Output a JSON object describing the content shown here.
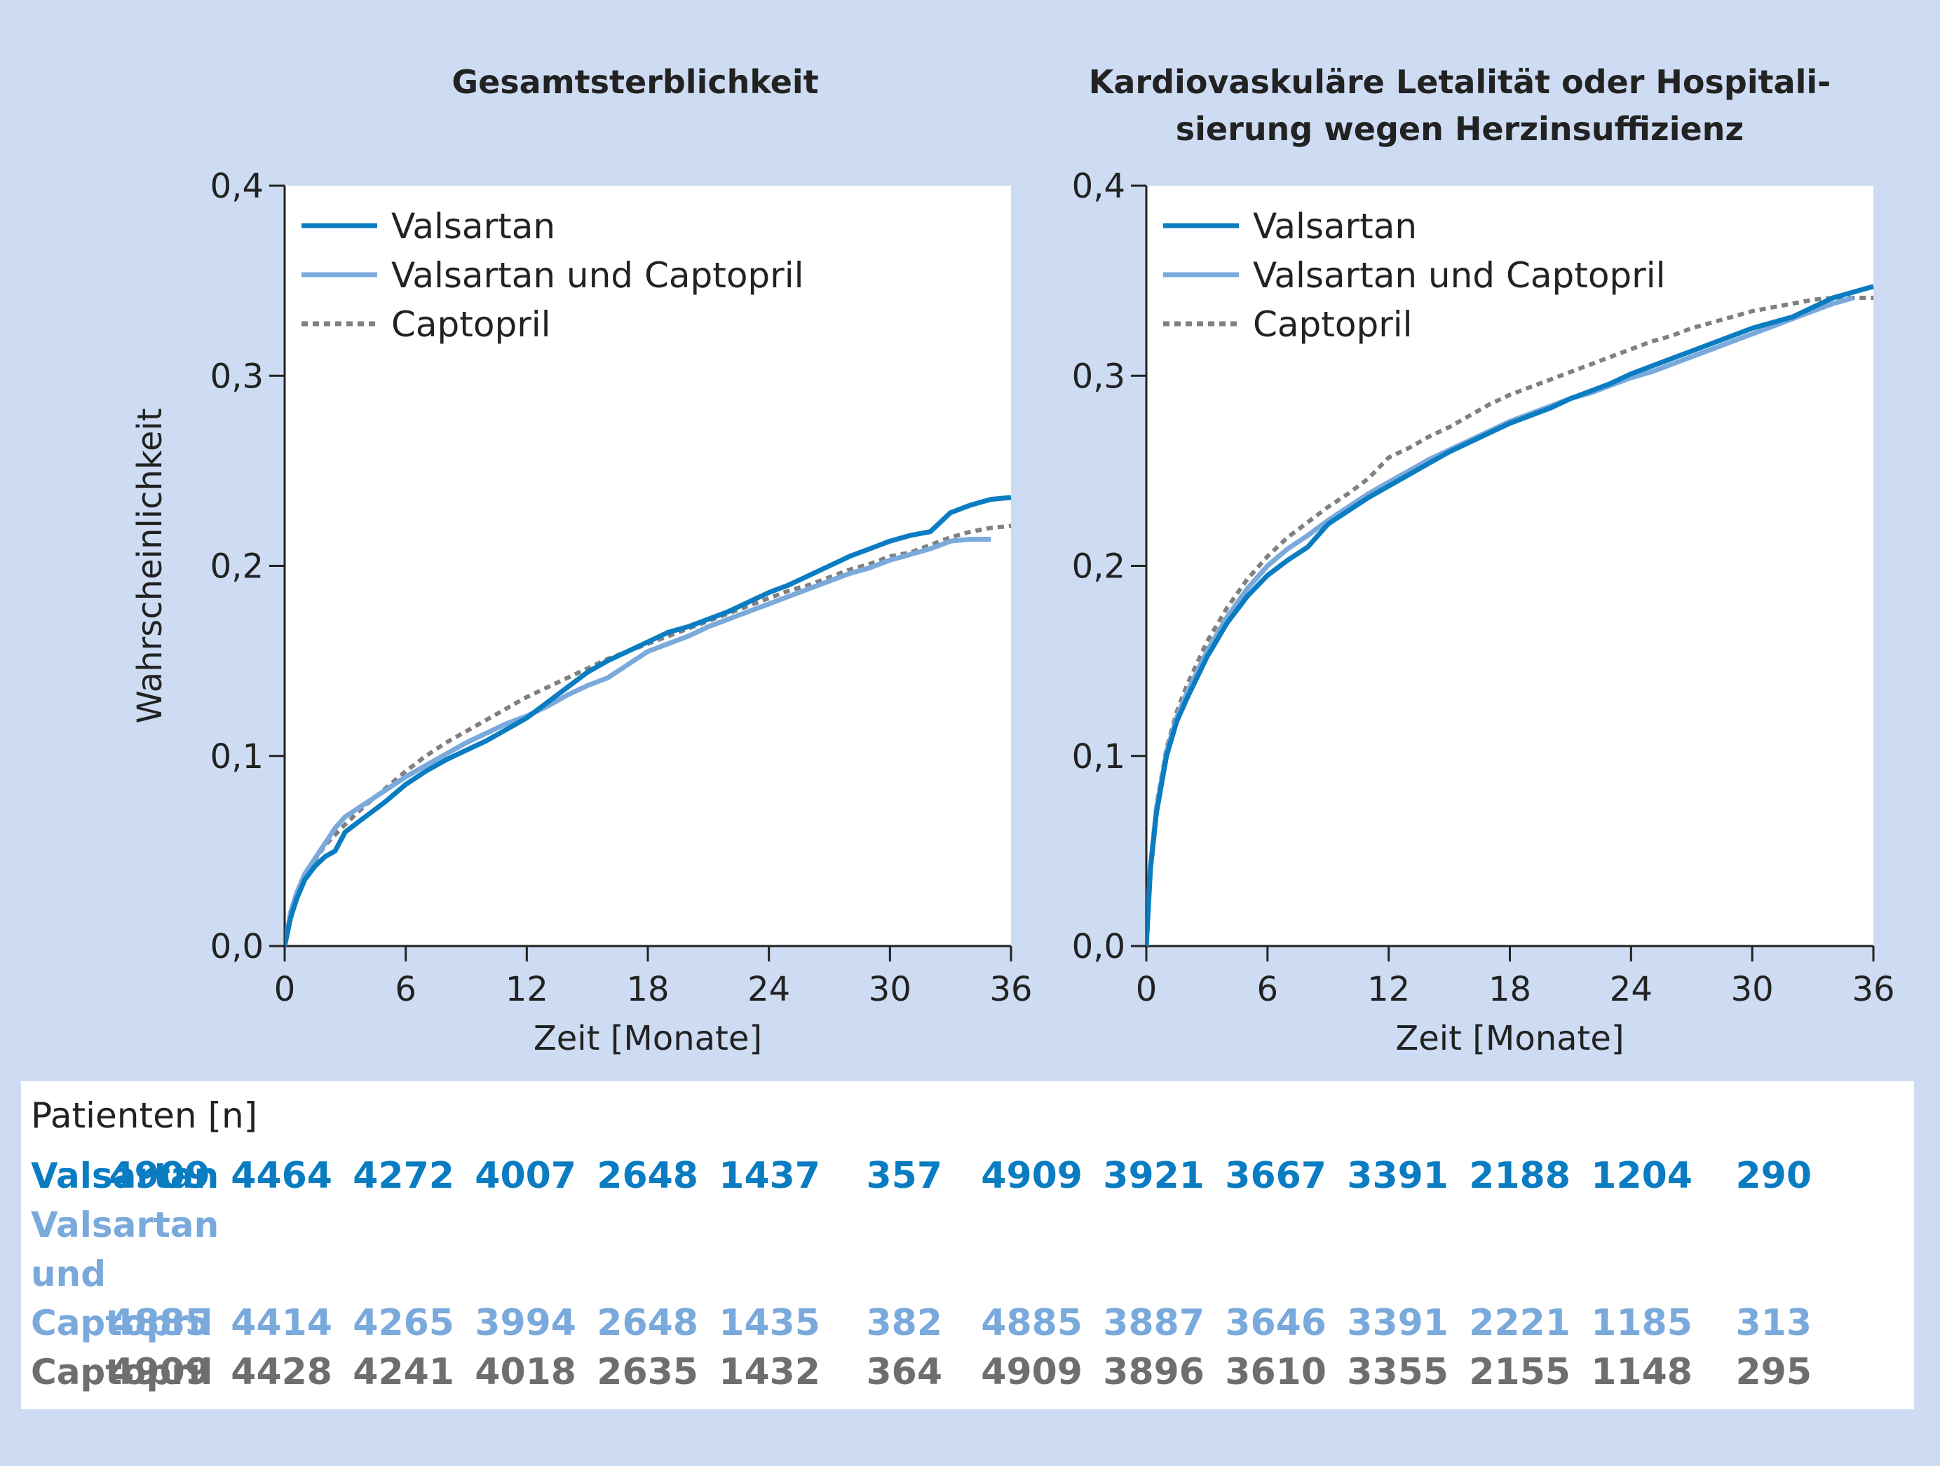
{
  "colors": {
    "background": "#cddcf2",
    "valsartan": "#0a7cc1",
    "valsartan_captopril": "#7aa9dc",
    "captopril": "#808080"
  },
  "chart_data": [
    {
      "type": "line",
      "title": "Gesamtsterblichkeit",
      "xlabel": "Zeit [Monate]",
      "ylabel": "Wahrscheinlichkeit",
      "xlim": [
        0,
        36
      ],
      "ylim": [
        0,
        0.4
      ],
      "xticks": [
        "0",
        "6",
        "12",
        "18",
        "24",
        "30",
        "36"
      ],
      "yticks": [
        "0,0",
        "0,1",
        "0,2",
        "0,3",
        "0,4"
      ],
      "grid": false,
      "legend": "top-left",
      "series": [
        {
          "name": "Valsartan",
          "color": "#0a7cc1",
          "style": "solid",
          "points": [
            [
              0,
              0
            ],
            [
              0.3,
              0.015
            ],
            [
              0.6,
              0.025
            ],
            [
              1,
              0.035
            ],
            [
              1.5,
              0.042
            ],
            [
              2,
              0.047
            ],
            [
              2.5,
              0.05
            ],
            [
              3,
              0.06
            ],
            [
              4,
              0.068
            ],
            [
              5,
              0.076
            ],
            [
              6,
              0.085
            ],
            [
              7,
              0.092
            ],
            [
              8,
              0.098
            ],
            [
              9,
              0.103
            ],
            [
              10,
              0.108
            ],
            [
              11,
              0.114
            ],
            [
              12,
              0.12
            ],
            [
              13,
              0.128
            ],
            [
              14,
              0.136
            ],
            [
              15,
              0.144
            ],
            [
              16,
              0.15
            ],
            [
              17,
              0.155
            ],
            [
              18,
              0.16
            ],
            [
              19,
              0.165
            ],
            [
              20,
              0.168
            ],
            [
              21,
              0.172
            ],
            [
              22,
              0.176
            ],
            [
              23,
              0.181
            ],
            [
              24,
              0.186
            ],
            [
              25,
              0.19
            ],
            [
              26,
              0.195
            ],
            [
              27,
              0.2
            ],
            [
              28,
              0.205
            ],
            [
              29,
              0.209
            ],
            [
              30,
              0.213
            ],
            [
              31,
              0.216
            ],
            [
              32,
              0.218
            ],
            [
              33,
              0.228
            ],
            [
              34,
              0.232
            ],
            [
              35,
              0.235
            ],
            [
              36,
              0.236
            ]
          ]
        },
        {
          "name": "Valsartan und Captopril",
          "color": "#7aa9dc",
          "style": "solid",
          "points": [
            [
              0,
              0
            ],
            [
              0.3,
              0.018
            ],
            [
              0.6,
              0.028
            ],
            [
              1,
              0.038
            ],
            [
              1.5,
              0.046
            ],
            [
              2,
              0.054
            ],
            [
              2.5,
              0.062
            ],
            [
              3,
              0.068
            ],
            [
              4,
              0.075
            ],
            [
              5,
              0.082
            ],
            [
              6,
              0.089
            ],
            [
              7,
              0.095
            ],
            [
              8,
              0.101
            ],
            [
              9,
              0.107
            ],
            [
              10,
              0.112
            ],
            [
              11,
              0.117
            ],
            [
              12,
              0.121
            ],
            [
              13,
              0.126
            ],
            [
              14,
              0.132
            ],
            [
              15,
              0.137
            ],
            [
              16,
              0.141
            ],
            [
              17,
              0.148
            ],
            [
              18,
              0.155
            ],
            [
              19,
              0.159
            ],
            [
              20,
              0.163
            ],
            [
              21,
              0.168
            ],
            [
              22,
              0.172
            ],
            [
              23,
              0.176
            ],
            [
              24,
              0.18
            ],
            [
              25,
              0.184
            ],
            [
              26,
              0.188
            ],
            [
              27,
              0.192
            ],
            [
              28,
              0.196
            ],
            [
              29,
              0.199
            ],
            [
              30,
              0.203
            ],
            [
              31,
              0.206
            ],
            [
              32,
              0.209
            ],
            [
              33,
              0.213
            ],
            [
              34,
              0.214
            ],
            [
              35,
              0.214
            ]
          ]
        },
        {
          "name": "Captopril",
          "color": "#808080",
          "style": "dotted",
          "points": [
            [
              0,
              0
            ],
            [
              0.3,
              0.017
            ],
            [
              0.6,
              0.027
            ],
            [
              1,
              0.037
            ],
            [
              1.5,
              0.045
            ],
            [
              2,
              0.053
            ],
            [
              3,
              0.064
            ],
            [
              4,
              0.074
            ],
            [
              5,
              0.083
            ],
            [
              6,
              0.092
            ],
            [
              7,
              0.1
            ],
            [
              8,
              0.107
            ],
            [
              9,
              0.113
            ],
            [
              10,
              0.119
            ],
            [
              11,
              0.125
            ],
            [
              12,
              0.131
            ],
            [
              13,
              0.136
            ],
            [
              14,
              0.141
            ],
            [
              15,
              0.146
            ],
            [
              16,
              0.151
            ],
            [
              17,
              0.155
            ],
            [
              18,
              0.159
            ],
            [
              19,
              0.163
            ],
            [
              20,
              0.167
            ],
            [
              21,
              0.171
            ],
            [
              22,
              0.175
            ],
            [
              23,
              0.179
            ],
            [
              24,
              0.183
            ],
            [
              25,
              0.187
            ],
            [
              26,
              0.19
            ],
            [
              27,
              0.194
            ],
            [
              28,
              0.198
            ],
            [
              29,
              0.201
            ],
            [
              30,
              0.205
            ],
            [
              31,
              0.207
            ],
            [
              32,
              0.211
            ],
            [
              33,
              0.215
            ],
            [
              34,
              0.218
            ],
            [
              35,
              0.22
            ],
            [
              36,
              0.221
            ]
          ]
        }
      ]
    },
    {
      "type": "line",
      "title": "Kardiovaskuläre Letalität oder Hospitali-\nsierung wegen Herzinsuffizienz",
      "xlabel": "Zeit [Monate]",
      "ylabel": "",
      "xlim": [
        0,
        36
      ],
      "ylim": [
        0,
        0.4
      ],
      "xticks": [
        "0",
        "6",
        "12",
        "18",
        "24",
        "30",
        "36"
      ],
      "yticks": [
        "0,0",
        "0,1",
        "0,2",
        "0,3",
        "0,4"
      ],
      "grid": false,
      "legend": "top-left",
      "series": [
        {
          "name": "Valsartan",
          "color": "#0a7cc1",
          "style": "solid",
          "points": [
            [
              0,
              0
            ],
            [
              0.2,
              0.04
            ],
            [
              0.5,
              0.07
            ],
            [
              1,
              0.1
            ],
            [
              1.5,
              0.118
            ],
            [
              2,
              0.13
            ],
            [
              3,
              0.152
            ],
            [
              4,
              0.17
            ],
            [
              5,
              0.184
            ],
            [
              6,
              0.195
            ],
            [
              7,
              0.203
            ],
            [
              8,
              0.21
            ],
            [
              9,
              0.222
            ],
            [
              10,
              0.229
            ],
            [
              11,
              0.236
            ],
            [
              12,
              0.242
            ],
            [
              13,
              0.248
            ],
            [
              14,
              0.254
            ],
            [
              15,
              0.26
            ],
            [
              16,
              0.265
            ],
            [
              17,
              0.27
            ],
            [
              18,
              0.275
            ],
            [
              19,
              0.279
            ],
            [
              20,
              0.283
            ],
            [
              21,
              0.288
            ],
            [
              22,
              0.292
            ],
            [
              23,
              0.296
            ],
            [
              24,
              0.301
            ],
            [
              25,
              0.305
            ],
            [
              26,
              0.309
            ],
            [
              27,
              0.313
            ],
            [
              28,
              0.317
            ],
            [
              29,
              0.321
            ],
            [
              30,
              0.325
            ],
            [
              31,
              0.328
            ],
            [
              32,
              0.331
            ],
            [
              33,
              0.336
            ],
            [
              34,
              0.341
            ],
            [
              35,
              0.344
            ],
            [
              36,
              0.347
            ]
          ]
        },
        {
          "name": "Valsartan und Captopril",
          "color": "#7aa9dc",
          "style": "solid",
          "points": [
            [
              0,
              0
            ],
            [
              0.2,
              0.042
            ],
            [
              0.5,
              0.072
            ],
            [
              1,
              0.102
            ],
            [
              1.5,
              0.12
            ],
            [
              2,
              0.133
            ],
            [
              3,
              0.155
            ],
            [
              4,
              0.173
            ],
            [
              5,
              0.188
            ],
            [
              6,
              0.2
            ],
            [
              7,
              0.209
            ],
            [
              8,
              0.216
            ],
            [
              9,
              0.224
            ],
            [
              10,
              0.231
            ],
            [
              11,
              0.238
            ],
            [
              12,
              0.244
            ],
            [
              13,
              0.25
            ],
            [
              14,
              0.256
            ],
            [
              15,
              0.261
            ],
            [
              16,
              0.266
            ],
            [
              17,
              0.271
            ],
            [
              18,
              0.276
            ],
            [
              19,
              0.28
            ],
            [
              20,
              0.284
            ],
            [
              21,
              0.288
            ],
            [
              22,
              0.291
            ],
            [
              23,
              0.295
            ],
            [
              24,
              0.299
            ],
            [
              25,
              0.302
            ],
            [
              26,
              0.306
            ],
            [
              27,
              0.31
            ],
            [
              28,
              0.314
            ],
            [
              29,
              0.318
            ],
            [
              30,
              0.322
            ],
            [
              31,
              0.326
            ],
            [
              32,
              0.33
            ],
            [
              33,
              0.334
            ],
            [
              34,
              0.338
            ],
            [
              35,
              0.341
            ]
          ]
        },
        {
          "name": "Captopril",
          "color": "#808080",
          "style": "dotted",
          "points": [
            [
              0,
              0
            ],
            [
              0.2,
              0.043
            ],
            [
              0.5,
              0.074
            ],
            [
              1,
              0.104
            ],
            [
              1.5,
              0.123
            ],
            [
              2,
              0.137
            ],
            [
              3,
              0.16
            ],
            [
              4,
              0.178
            ],
            [
              5,
              0.193
            ],
            [
              6,
              0.205
            ],
            [
              7,
              0.215
            ],
            [
              8,
              0.223
            ],
            [
              9,
              0.231
            ],
            [
              10,
              0.238
            ],
            [
              11,
              0.246
            ],
            [
              12,
              0.257
            ],
            [
              13,
              0.262
            ],
            [
              14,
              0.268
            ],
            [
              15,
              0.273
            ],
            [
              16,
              0.279
            ],
            [
              17,
              0.285
            ],
            [
              18,
              0.29
            ],
            [
              19,
              0.294
            ],
            [
              20,
              0.298
            ],
            [
              21,
              0.302
            ],
            [
              22,
              0.306
            ],
            [
              23,
              0.31
            ],
            [
              24,
              0.314
            ],
            [
              25,
              0.318
            ],
            [
              26,
              0.321
            ],
            [
              27,
              0.325
            ],
            [
              28,
              0.328
            ],
            [
              29,
              0.331
            ],
            [
              30,
              0.334
            ],
            [
              31,
              0.336
            ],
            [
              32,
              0.338
            ],
            [
              33,
              0.34
            ],
            [
              34,
              0.341
            ],
            [
              35,
              0.341
            ],
            [
              36,
              0.341
            ]
          ]
        }
      ]
    }
  ],
  "patients": {
    "title": "Patienten [n]",
    "rows": [
      {
        "label": [
          "Valsartan"
        ],
        "color": "#0a7cc1",
        "left": [
          "4909",
          "4464",
          "4272",
          "4007",
          "2648",
          "1437",
          "357"
        ],
        "right": [
          "4909",
          "3921",
          "3667",
          "3391",
          "2188",
          "1204",
          "290"
        ]
      },
      {
        "label": [
          "Valsartan",
          "und",
          "Captopril"
        ],
        "color": "#7aa9dc",
        "left": [
          "4885",
          "4414",
          "4265",
          "3994",
          "2648",
          "1435",
          "382"
        ],
        "right": [
          "4885",
          "3887",
          "3646",
          "3391",
          "2221",
          "1185",
          "313"
        ]
      },
      {
        "label": [
          "Captopril"
        ],
        "color": "#6e6e6e",
        "left": [
          "4909",
          "4428",
          "4241",
          "4018",
          "2635",
          "1432",
          "364"
        ],
        "right": [
          "4909",
          "3896",
          "3610",
          "3355",
          "2155",
          "1148",
          "295"
        ]
      }
    ]
  }
}
